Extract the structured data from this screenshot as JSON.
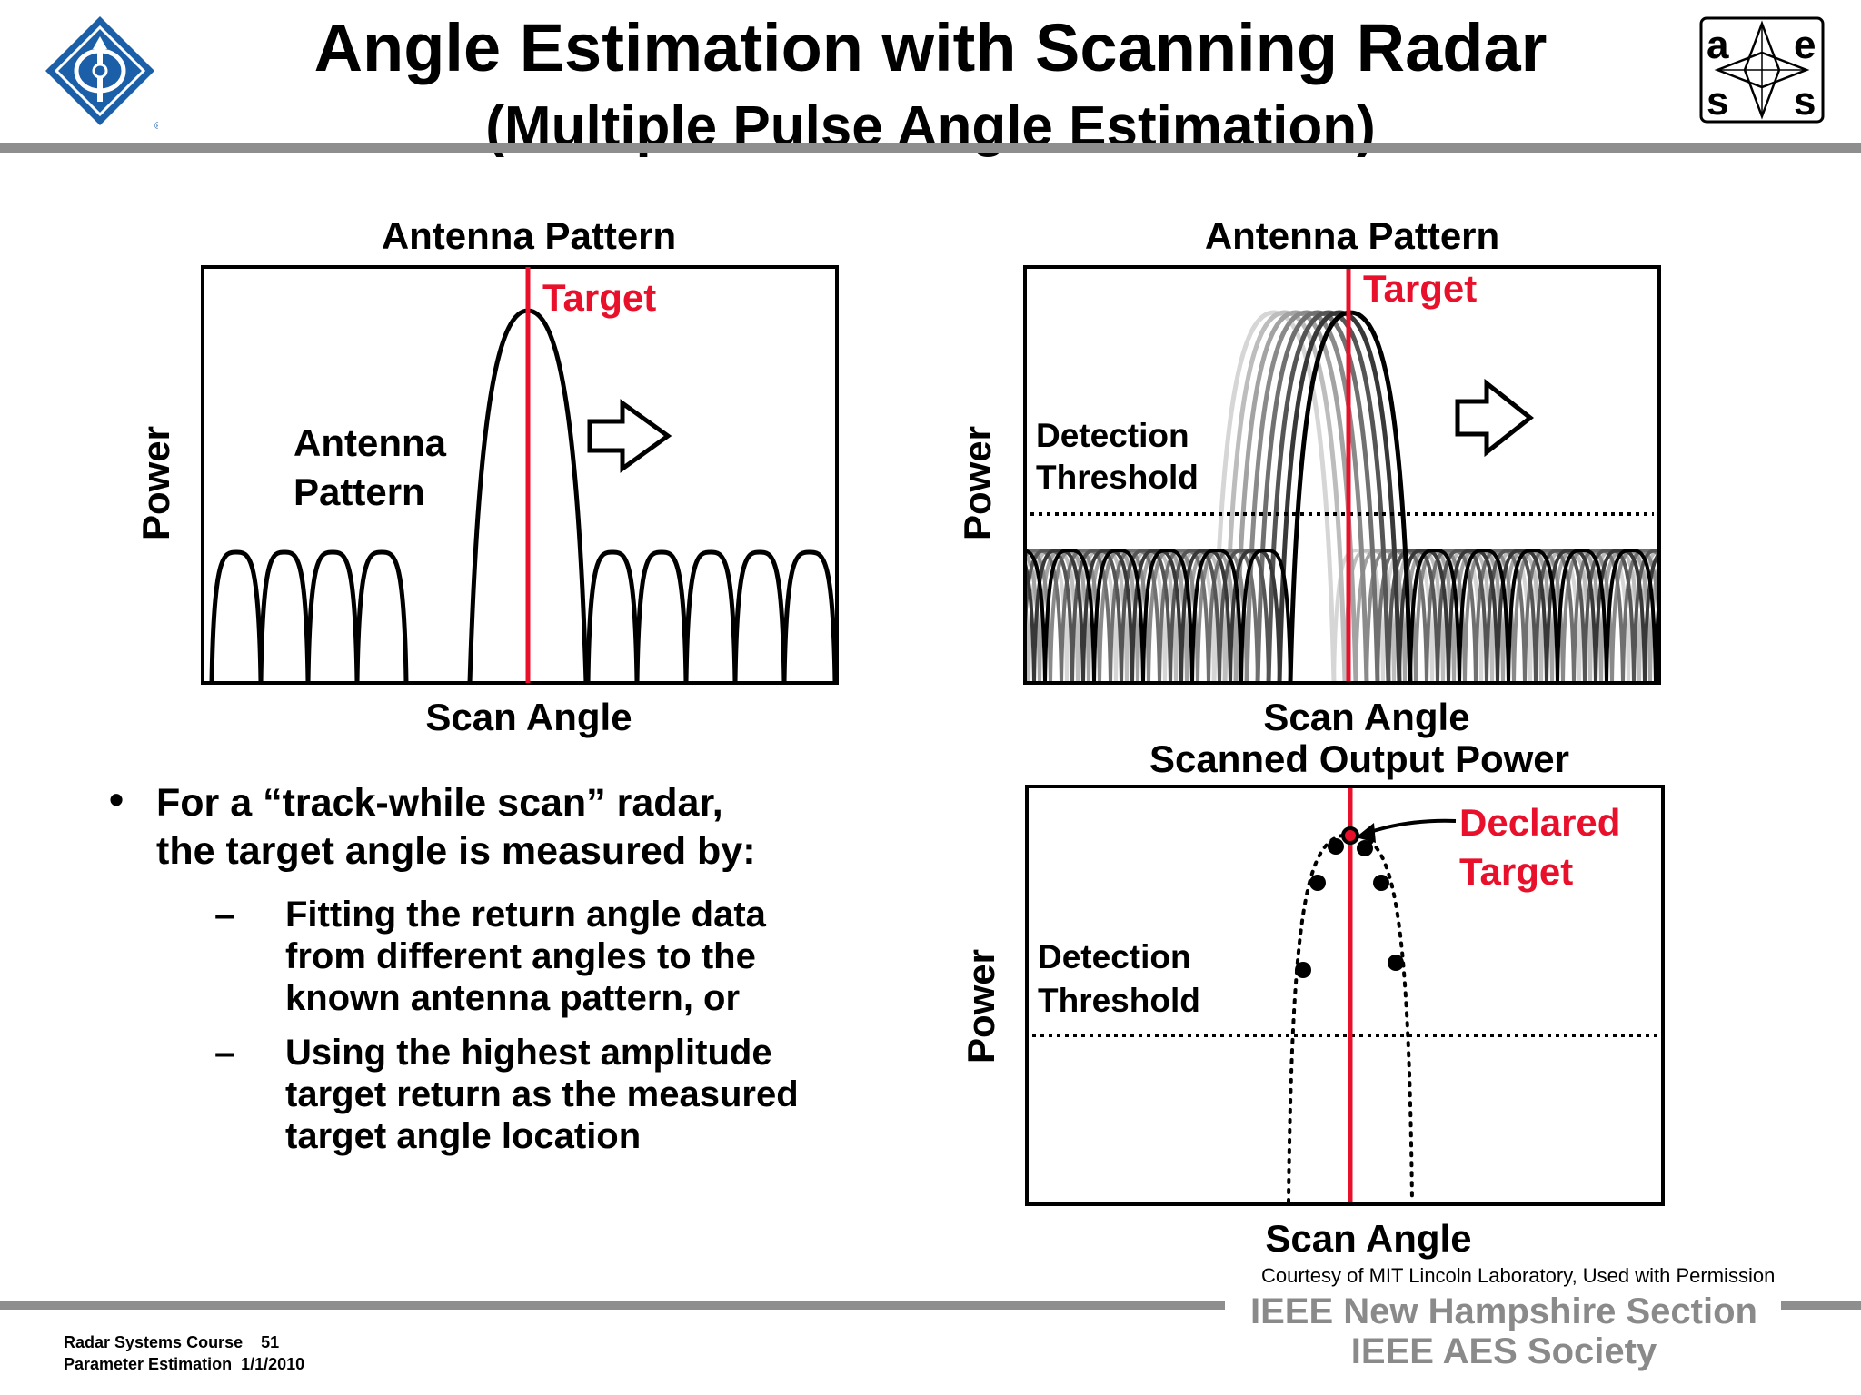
{
  "header": {
    "title": "Angle Estimation with Scanning Radar",
    "subtitle": "(Multiple Pulse Angle Estimation)",
    "logo_right_letters": [
      "a",
      "e",
      "s",
      "s"
    ]
  },
  "left_plot": {
    "title": "Antenna Pattern",
    "target_label": "Target",
    "pattern_label_line1": "Antenna",
    "pattern_label_line2": "Pattern",
    "y_label": "Power",
    "x_label": "Scan Angle"
  },
  "right_top_plot": {
    "title": "Antenna Pattern",
    "target_label": "Target",
    "threshold_line1": "Detection",
    "threshold_line2": "Threshold",
    "y_label": "Power",
    "x_label": "Scan Angle"
  },
  "right_bottom_plot": {
    "title": "Scanned Output Power",
    "declared_line1": "Declared",
    "declared_line2": "Target",
    "threshold_line1": "Detection",
    "threshold_line2": "Threshold",
    "y_label": "Power",
    "x_label": "Scan Angle"
  },
  "bullets": {
    "main_line1": "For a “track-while scan” radar,",
    "main_line2": "the target angle is measured by:",
    "dash": "–",
    "sub1": [
      "Fitting the return angle data",
      "from different angles to the",
      "known antenna pattern, or"
    ],
    "sub2": [
      "Using the highest amplitude",
      "target return as the measured",
      "target angle location"
    ]
  },
  "courtesy": "Courtesy of MIT Lincoln Laboratory, Used with Permission",
  "footer": {
    "course": "Radar Systems Course",
    "page": "51",
    "section": "Parameter Estimation",
    "date": "1/1/2010",
    "org1": "IEEE New Hampshire Section",
    "org2": "IEEE AES Society"
  },
  "colors": {
    "target_red": "#e8102a",
    "rule_gray": "#8e8e8e",
    "ieee_blue": "#1a5fa8"
  }
}
